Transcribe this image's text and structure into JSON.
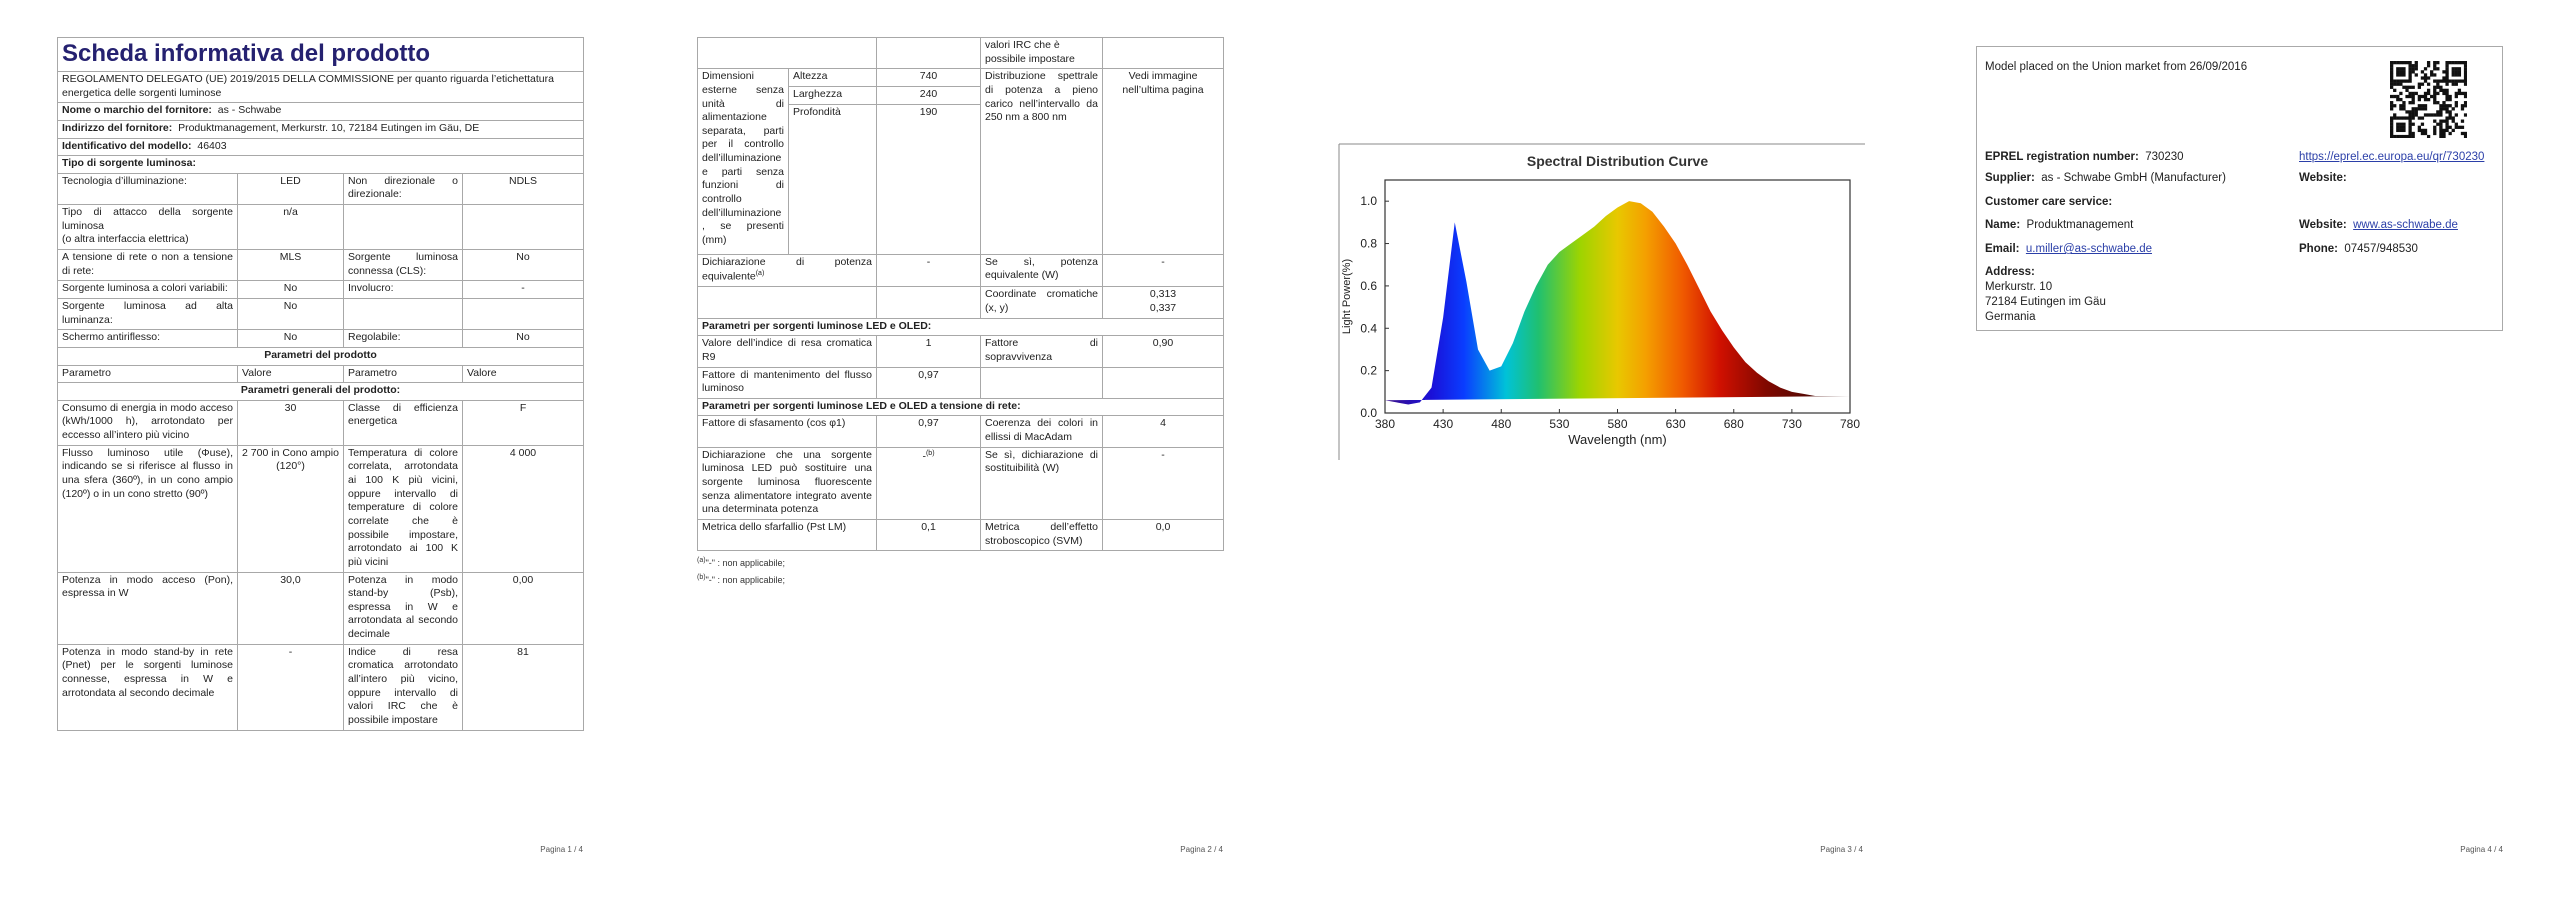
{
  "page1": {
    "title": "Scheda informativa del prodotto",
    "regulation": "REGOLAMENTO DELEGATO (UE) 2019/2015 DELLA COMMISSIONE per quanto riguarda l’etichettatura energetica delle sorgenti luminose",
    "supplier_name": {
      "label": "Nome o marchio del fornitore:",
      "value": "as - Schwabe"
    },
    "supplier_address": {
      "label": "Indirizzo del fornitore:",
      "value": "Produktmanagement, Merkurstr. 10, 72184 Eutingen im Gäu, DE"
    },
    "model_id": {
      "label": "Identificativo del modello:",
      "value": "46403"
    },
    "light_source_type": "Tipo di sorgente luminosa:",
    "type_rows": [
      [
        "Tecnologia d’illuminazione:",
        "LED",
        "Non direzionale o direzionale:",
        "NDLS"
      ],
      [
        "Tipo di attacco della sorgente luminosa\n(o altra interfaccia elettrica)",
        "n/a",
        null,
        null
      ],
      [
        "A tensione di rete o non a tensione di rete:",
        "MLS",
        "Sorgente luminosa connessa (CLS):",
        "No"
      ],
      [
        "Sorgente luminosa a colori variabili:",
        "No",
        "Involucro:",
        "-"
      ],
      [
        "Sorgente luminosa ad alta luminanza:",
        "No",
        null,
        null
      ],
      [
        "Schermo antiriflesso:",
        "No",
        "Regolabile:",
        "No"
      ]
    ],
    "product_parameters": "Parametri del prodotto",
    "header": [
      "Parametro",
      "Valore",
      "Parametro",
      "Valore"
    ],
    "general_parameters": "Parametri generali del prodotto:",
    "general_rows": [
      [
        "Consumo di energia in modo acceso (kWh/1000 h), arrotondato per eccesso all’intero più vicino",
        "30",
        "Classe di efficienza energetica",
        "F"
      ],
      [
        "Flusso luminoso utile (Φuse), indicando se si riferisce al flusso in una sfera (360º), in un cono ampio (120º) o in un cono stretto (90º)",
        "2 700 in Cono ampio (120°)",
        "Temperatura di colore correlata, arrotondata ai 100 K più vicini, oppure intervallo di temperature di colore correlate che è possibile impostare, arrotondato ai 100 K più vicini",
        "4 000"
      ],
      [
        "Potenza in modo acceso (Pon), espressa in W",
        "30,0",
        "Potenza in modo stand-by (Psb), espressa in W e arrotondata al secondo decimale",
        "0,00"
      ],
      [
        "Potenza in modo stand-by in rete (Pnet) per le sorgenti luminose connesse, espressa in W e arrotondata al secondo decimale",
        "-",
        "Indice di resa cromatica arrotondato all’intero più vicino, oppure intervallo di valori IRC che è possibile impostare",
        "81"
      ]
    ]
  },
  "page2": {
    "continued_row": [
      null,
      null,
      "valori IRC che è possibile impostare",
      null
    ],
    "dimensions": {
      "label": "Dimensioni esterne senza unità di alimentazione separata, parti per il controllo dell’illuminazione e parti senza funzioni di controllo dell’illuminazione, se presenti (mm)",
      "items": [
        {
          "name": "Altezza",
          "value": "740"
        },
        {
          "name": "Larghezza",
          "value": "240"
        },
        {
          "name": "Profondità",
          "value": "190"
        }
      ],
      "spd_label": "Distribuzione spettrale di potenza a pieno carico nell’intervallo da 250 nm a 800 nm",
      "spd_value": "Vedi immagine nell’ultima pagina"
    },
    "rows_a": [
      [
        {
          "text": "Dichiarazione di potenza equivalente",
          "note": "(a)"
        },
        "-",
        "Se sì, potenza equivalente (W)",
        "-"
      ],
      [
        null,
        null,
        "Coordinate cromatiche (x, y)",
        {
          "lines": [
            "0,313",
            "0,337"
          ]
        }
      ]
    ],
    "led_heading": "Parametri per sorgenti luminose LED e OLED:",
    "led_rows": [
      [
        "Valore dell’indice di resa cromatica R9",
        "1",
        "Fattore di sopravvivenza",
        "0,90"
      ],
      [
        "Fattore di mantenimento del flusso luminoso",
        "0,97",
        null,
        null
      ]
    ],
    "mains_heading": "Parametri per sorgenti luminose LED e OLED a tensione di rete:",
    "mains_rows": [
      [
        "Fattore di sfasamento (cos φ1)",
        "0,97",
        "Coerenza dei colori in ellissi di MacAdam",
        "4"
      ],
      [
        "Dichiarazione che una sorgente luminosa LED può sostituire una sorgente luminosa fluorescente senza alimentatore integrato avente una determinata potenza",
        {
          "text": "-",
          "note": "(b)"
        },
        "Se sì, dichiarazione di sostituibilità (W)",
        "-"
      ],
      [
        "Metrica dello sfarfallio (Pst LM)",
        "0,1",
        "Metrica dell’effetto stroboscopico (SVM)",
        "0,0"
      ]
    ],
    "footnotes": [
      {
        "mark": "(a)",
        "text": "\"-\" : non applicabile;"
      },
      {
        "mark": "(b)",
        "text": "\"-\" : non applicabile;"
      }
    ]
  },
  "page3": {
    "chart_data": {
      "type": "area",
      "title": "Spectral Distribution Curve",
      "x_label": "Wavelength (nm)",
      "y_label": "Light Power(%)",
      "x": [
        380,
        390,
        400,
        410,
        420,
        430,
        440,
        450,
        460,
        470,
        480,
        490,
        500,
        510,
        520,
        530,
        540,
        550,
        560,
        570,
        580,
        590,
        600,
        610,
        620,
        630,
        640,
        650,
        660,
        670,
        680,
        690,
        700,
        710,
        720,
        730,
        740,
        750,
        760,
        770,
        780
      ],
      "values": [
        0.06,
        0.05,
        0.04,
        0.05,
        0.12,
        0.45,
        0.9,
        0.62,
        0.3,
        0.2,
        0.22,
        0.33,
        0.48,
        0.6,
        0.7,
        0.76,
        0.8,
        0.84,
        0.88,
        0.93,
        0.97,
        1.0,
        0.99,
        0.95,
        0.88,
        0.8,
        0.7,
        0.59,
        0.48,
        0.39,
        0.31,
        0.24,
        0.19,
        0.15,
        0.12,
        0.1,
        0.09,
        0.08,
        0.08,
        0.08,
        0.08
      ],
      "xlim": [
        380,
        780
      ],
      "ylim": [
        0,
        1.1
      ],
      "xticks": [
        380,
        430,
        480,
        530,
        580,
        630,
        680,
        730,
        780
      ],
      "yticks": [
        {
          "value": 0,
          "label": "0.0"
        },
        {
          "value": 0.2,
          "label": "0.2"
        },
        {
          "value": 0.4,
          "label": "0.4"
        },
        {
          "value": 0.6,
          "label": "0.6"
        },
        {
          "value": 0.8,
          "label": "0.8"
        },
        {
          "value": 1,
          "label": "1.0"
        }
      ]
    }
  },
  "page4": {
    "market_date": "Model placed on the Union market from 26/09/2016",
    "eprel": {
      "label": "EPREL registration number:",
      "value": "730230",
      "link": "https://eprel.ec.europa.eu/qr/730230"
    },
    "supplier": {
      "label": "Supplier:",
      "value": "as - Schwabe GmbH (Manufacturer)"
    },
    "supplier_website_label": "Website:",
    "customer_care": "Customer care service:",
    "name": {
      "label": "Name:",
      "value": "Produktmanagement"
    },
    "website": {
      "label": "Website:",
      "value": "www.as-schwabe.de"
    },
    "email": {
      "label": "Email:",
      "value": "u.miller@as-schwabe.de"
    },
    "phone": {
      "label": "Phone:",
      "value": "07457/948530"
    },
    "address": {
      "label": "Address:",
      "lines": [
        "Merkurstr. 10",
        "72184 Eutingen im Gäu",
        "Germania"
      ]
    }
  },
  "page_footers": [
    "Pagina 1 / 4",
    "Pagina 2 / 4",
    "Pagina 3 / 4",
    "Pagina 4 / 4"
  ]
}
